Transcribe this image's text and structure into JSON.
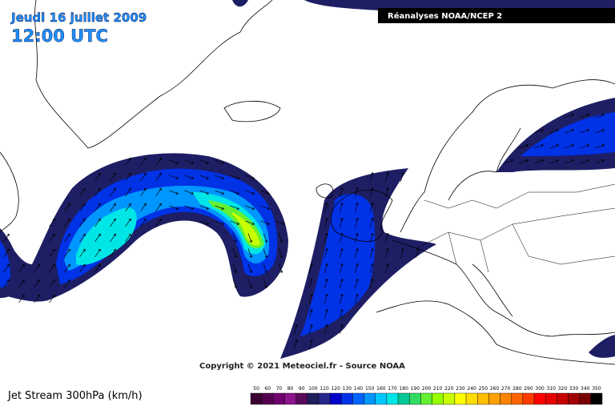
{
  "header": {
    "date": "Jeudi 16 juillet 2009",
    "time": "12:00 UTC",
    "source": "Réanalyses NOAA/NCEP 2"
  },
  "copyright": "Copyright © 2021 Meteociel.fr - Source NOAA",
  "footer": {
    "title": "Jet Stream 300hPa (km/h)"
  },
  "legend": {
    "values": [
      50,
      60,
      70,
      80,
      90,
      100,
      110,
      120,
      130,
      140,
      150,
      160,
      170,
      180,
      190,
      200,
      210,
      220,
      230,
      240,
      250,
      260,
      270,
      280,
      290,
      300,
      310,
      320,
      330,
      340,
      350
    ],
    "colors": [
      "#3c0032",
      "#55004f",
      "#6e006e",
      "#8c148c",
      "#5a0a5a",
      "#1e1e5a",
      "#28288c",
      "#0000c8",
      "#0032e6",
      "#0064ff",
      "#0096ff",
      "#00c8ff",
      "#00e6e6",
      "#00c896",
      "#32dc64",
      "#64f032",
      "#96ff00",
      "#c8ff00",
      "#ffff00",
      "#ffdc00",
      "#ffbe00",
      "#ffa000",
      "#ff8200",
      "#ff6400",
      "#ff3c00",
      "#ff0000",
      "#e60000",
      "#c80000",
      "#a00000",
      "#780000",
      "#000000"
    ]
  }
}
